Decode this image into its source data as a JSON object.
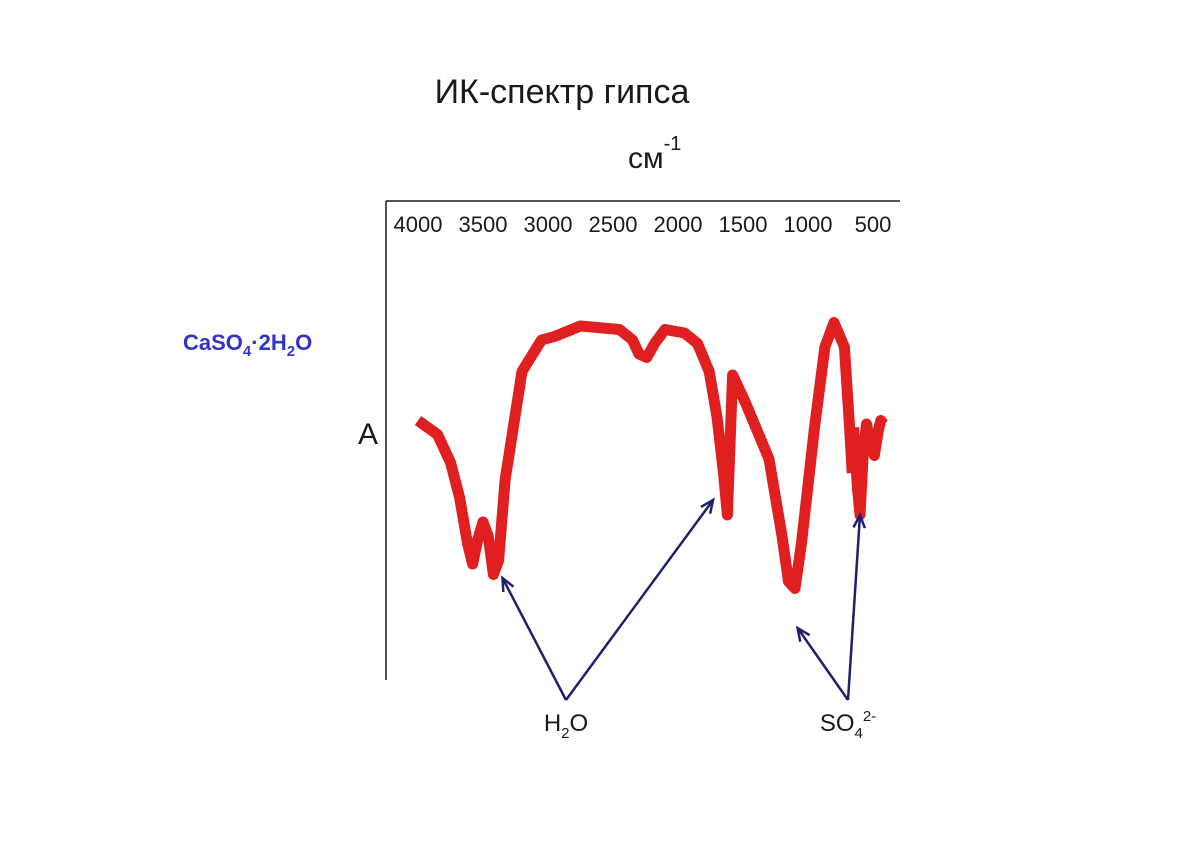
{
  "chart_data": {
    "type": "line",
    "title": "ИК-спектр гипса",
    "xlabel": {
      "base": "см",
      "sup": "-1"
    },
    "ylabel": "A",
    "compound": {
      "parts": [
        "CaSO",
        "4",
        "·2H",
        "2",
        "O"
      ]
    },
    "x_ticks": [
      4000,
      3500,
      3000,
      2500,
      2000,
      1500,
      1000,
      500
    ],
    "x_tick_labels": [
      "4000",
      "3500",
      "3000",
      "2500",
      "2000",
      "1500",
      "1000",
      "500"
    ],
    "xlim": [
      4150,
      300
    ],
    "ylim": [
      0,
      1
    ],
    "x_reversed": true,
    "grid": false,
    "series": [
      {
        "color": "#e02020",
        "x": [
          4000,
          3850,
          3750,
          3680,
          3620,
          3580,
          3540,
          3500,
          3460,
          3420,
          3380,
          3330,
          3200,
          3050,
          2950,
          2750,
          2450,
          2350,
          2300,
          2240,
          2180,
          2100,
          1950,
          1850,
          1760,
          1700,
          1650,
          1620,
          1580,
          1480,
          1300,
          1200,
          1150,
          1100,
          1050,
          950,
          870,
          800,
          720,
          680,
          660
        ],
        "y": [
          0.57,
          0.53,
          0.45,
          0.35,
          0.22,
          0.16,
          0.23,
          0.28,
          0.24,
          0.13,
          0.17,
          0.4,
          0.71,
          0.8,
          0.81,
          0.84,
          0.83,
          0.8,
          0.76,
          0.75,
          0.79,
          0.83,
          0.82,
          0.79,
          0.71,
          0.58,
          0.42,
          0.3,
          0.7,
          0.62,
          0.46,
          0.24,
          0.11,
          0.09,
          0.22,
          0.55,
          0.78,
          0.85,
          0.78,
          0.55,
          0.42
        ]
      },
      {
        "color": "#e02020",
        "x": [
          650,
          620,
          600,
          575,
          550,
          520,
          490,
          460,
          440,
          420
        ],
        "y": [
          0.55,
          0.38,
          0.3,
          0.48,
          0.56,
          0.5,
          0.47,
          0.54,
          0.57,
          0.56
        ]
      }
    ],
    "annotations": [
      {
        "label": {
          "base": "H",
          "sub": "2",
          "tail": "O"
        },
        "targets_cm": [
          3350,
          1730
        ]
      },
      {
        "label": {
          "base": "SO",
          "sub": "4",
          "sup": "2-"
        },
        "targets_cm": [
          1080,
          600
        ]
      }
    ],
    "arrow_color": "#1f1f6e"
  }
}
